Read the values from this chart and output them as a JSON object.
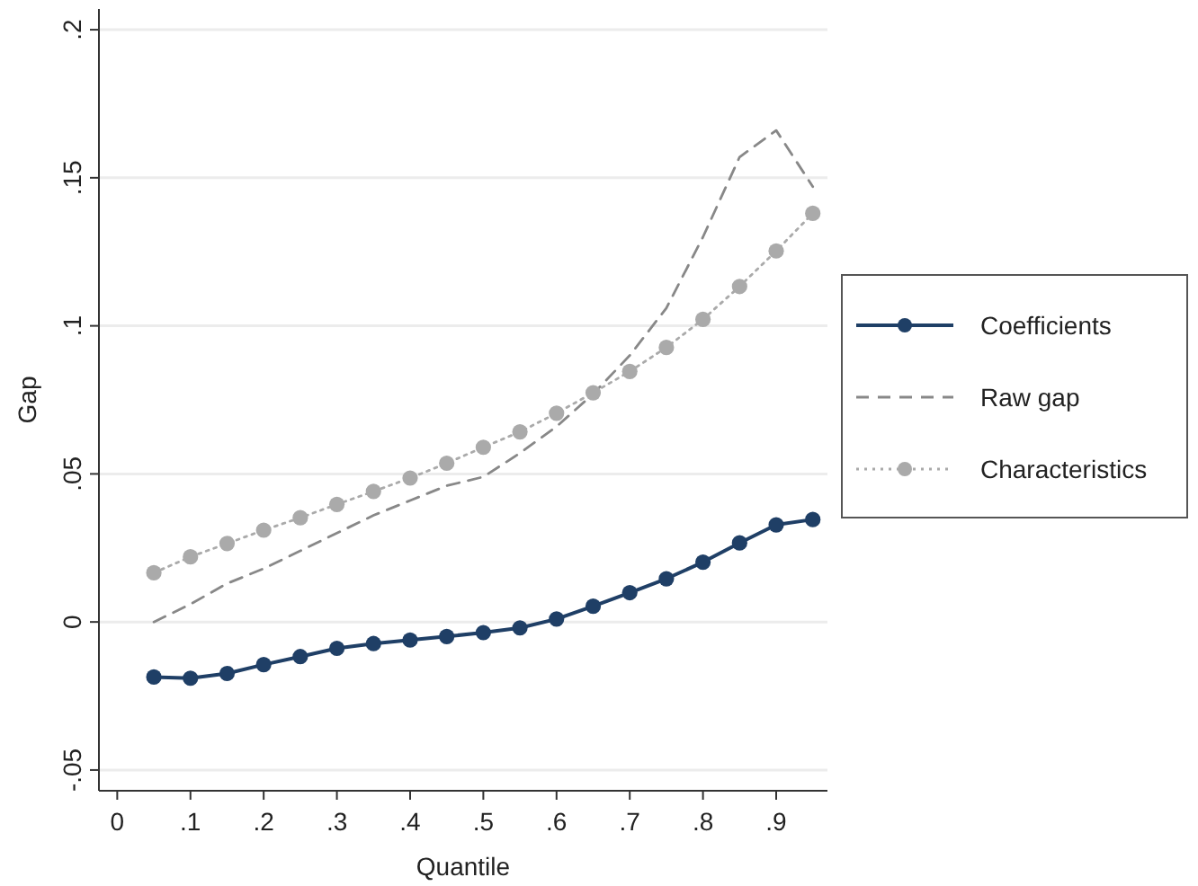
{
  "chart_data": {
    "type": "line",
    "xlabel": "Quantile",
    "ylabel": "Gap",
    "xlim": [
      -0.025,
      0.97
    ],
    "ylim": [
      -0.057,
      0.207
    ],
    "xticks": [
      0,
      {
        "value": 0.1,
        "label": ".1"
      },
      {
        "value": 0.2,
        "label": ".2"
      },
      {
        "value": 0.3,
        "label": ".3"
      },
      {
        "value": 0.4,
        "label": ".4"
      },
      {
        "value": 0.5,
        "label": ".5"
      },
      {
        "value": 0.6,
        "label": ".6"
      },
      {
        "value": 0.7,
        "label": ".7"
      },
      {
        "value": 0.8,
        "label": ".8"
      },
      {
        "value": 0.9,
        "label": ".9"
      }
    ],
    "yticks": [
      {
        "value": -0.05,
        "label": "-.05"
      },
      0,
      {
        "value": 0.05,
        "label": ".05"
      },
      {
        "value": 0.1,
        "label": ".1"
      },
      {
        "value": 0.15,
        "label": ".15"
      },
      {
        "value": 0.2,
        "label": ".2"
      }
    ],
    "x": [
      0.05,
      0.1,
      0.15,
      0.2,
      0.25,
      0.3,
      0.35,
      0.4,
      0.45,
      0.5,
      0.55,
      0.6,
      0.65,
      0.7,
      0.75,
      0.8,
      0.85,
      0.9,
      0.95
    ],
    "grid": "y",
    "legend": "right",
    "series": [
      {
        "name": "Coefficients",
        "color": "#1f3f66",
        "marker": "circle",
        "line_style": "solid",
        "values": [
          -0.0186,
          -0.019,
          -0.0174,
          -0.0144,
          -0.0117,
          -0.0089,
          -0.0073,
          -0.0061,
          -0.0049,
          -0.0036,
          -0.002,
          0.001,
          0.0053,
          0.0099,
          0.0146,
          0.0202,
          0.0267,
          0.0328,
          0.0346
        ]
      },
      {
        "name": "Raw gap",
        "color": "#888888",
        "marker": "none",
        "line_style": "dashed",
        "values": [
          0.0,
          0.006,
          0.013,
          0.018,
          0.024,
          0.03,
          0.036,
          0.041,
          0.046,
          0.049,
          0.057,
          0.066,
          0.077,
          0.09,
          0.106,
          0.13,
          0.157,
          0.166,
          0.147
        ]
      },
      {
        "name": "Characteristics",
        "color": "#aaaaaa",
        "marker": "circle",
        "line_style": "dotted",
        "values": [
          0.0166,
          0.022,
          0.0265,
          0.031,
          0.0352,
          0.0397,
          0.0441,
          0.0486,
          0.0536,
          0.059,
          0.0642,
          0.0705,
          0.0774,
          0.0846,
          0.0927,
          0.1022,
          0.1133,
          0.1253,
          0.138
        ]
      }
    ]
  }
}
